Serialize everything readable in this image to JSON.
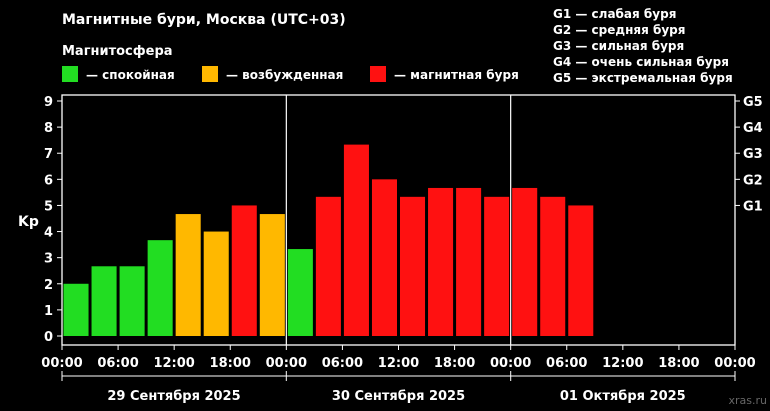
{
  "header": {
    "title": "Магнитные бури, Москва (UTC+03)",
    "legend_title": "Магнитосфера"
  },
  "legend": [
    {
      "label": "— спокойная",
      "color": "#22dd22"
    },
    {
      "label": "— возбужденная",
      "color": "#ffb800"
    },
    {
      "label": "— магнитная буря",
      "color": "#ff1111"
    }
  ],
  "storm_scale": [
    "G1 — слабая буря",
    "G2 — средняя буря",
    "G3 — сильная буря",
    "G4 — очень сильная буря",
    "G5 — экстремальная буря"
  ],
  "watermark": "xras.ru",
  "colors": {
    "quiet": "#22dd22",
    "active": "#ffb800",
    "storm": "#ff1111",
    "axis": "#ffffff",
    "background": "#000000"
  },
  "chart_data": {
    "type": "bar",
    "ylabel": "Kp",
    "ylim": [
      0,
      9
    ],
    "yticks": [
      "0",
      "1",
      "2",
      "3",
      "4",
      "5",
      "6",
      "7",
      "8",
      "9"
    ],
    "right_ticks": [
      {
        "kp": 5,
        "label": "G1"
      },
      {
        "kp": 6,
        "label": "G2"
      },
      {
        "kp": 7,
        "label": "G3"
      },
      {
        "kp": 8,
        "label": "G4"
      },
      {
        "kp": 9,
        "label": "G5"
      }
    ],
    "xticks": [
      "00:00",
      "06:00",
      "12:00",
      "18:00",
      "00:00",
      "06:00",
      "12:00",
      "18:00",
      "00:00",
      "06:00",
      "12:00",
      "18:00",
      "00:00"
    ],
    "days": [
      "29 Сентября 2025",
      "30 Сентября 2025",
      "01 Октября 2025"
    ],
    "interval_hours": 3,
    "total_slots": 24,
    "values": [
      2.0,
      2.67,
      2.67,
      3.67,
      4.67,
      4.0,
      5.0,
      4.67,
      3.33,
      5.33,
      7.33,
      6.0,
      5.33,
      5.67,
      5.67,
      5.33,
      5.67,
      5.33,
      5.0
    ],
    "levels": [
      "quiet",
      "quiet",
      "quiet",
      "quiet",
      "active",
      "active",
      "storm",
      "active",
      "quiet",
      "storm",
      "storm",
      "storm",
      "storm",
      "storm",
      "storm",
      "storm",
      "storm",
      "storm",
      "storm"
    ],
    "grid": false
  }
}
